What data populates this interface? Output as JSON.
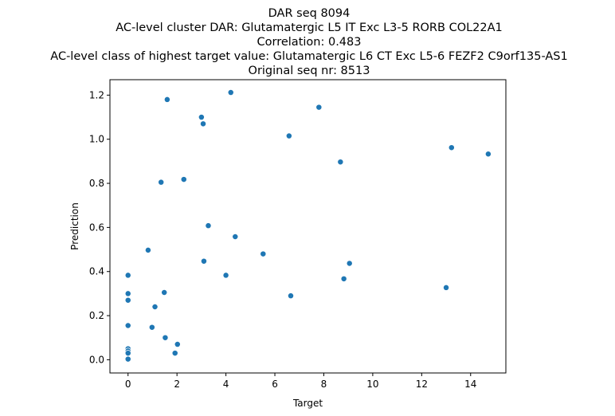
{
  "chart_data": {
    "type": "scatter",
    "title": [
      "DAR seq 8094",
      "AC-level cluster DAR: Glutamatergic L5 IT Exc L3-5 RORB COL22A1",
      "Correlation: 0.483",
      "AC-level class of highest target value: Glutamatergic L6 CT Exc L5-6 FEZF2 C9orf135-AS1",
      "Original seq nr: 8513"
    ],
    "xlabel": "Target",
    "ylabel": "Prediction",
    "xlim": [
      -0.74,
      15.44
    ],
    "ylim": [
      -0.06,
      1.27
    ],
    "xticks": [
      0,
      2,
      4,
      6,
      8,
      10,
      12,
      14
    ],
    "yticks": [
      0.0,
      0.2,
      0.4,
      0.6,
      0.8,
      1.0,
      1.2
    ],
    "xtick_labels": [
      "0",
      "2",
      "4",
      "6",
      "8",
      "10",
      "12",
      "14"
    ],
    "ytick_labels": [
      "0.0",
      "0.2",
      "0.4",
      "0.6",
      "0.8",
      "1.0",
      "1.2"
    ],
    "grid": false,
    "legend": "none",
    "marker_color": "#1f77b4",
    "x": [
      0.0,
      0.0,
      0.0,
      0.0,
      0.0,
      0.0,
      0.0,
      0.0,
      0.82,
      0.98,
      1.1,
      1.35,
      1.48,
      1.52,
      1.6,
      1.92,
      2.02,
      2.28,
      3.0,
      3.07,
      3.1,
      3.28,
      4.0,
      4.2,
      4.38,
      5.52,
      6.58,
      6.65,
      7.8,
      8.68,
      8.82,
      9.05,
      13.0,
      13.22,
      14.72
    ],
    "y": [
      0.383,
      0.3,
      0.27,
      0.155,
      0.05,
      0.04,
      0.03,
      0.003,
      0.497,
      0.147,
      0.24,
      0.805,
      0.305,
      0.1,
      1.18,
      0.03,
      0.07,
      0.818,
      1.1,
      1.07,
      0.447,
      0.608,
      0.383,
      1.212,
      0.558,
      0.48,
      1.015,
      0.29,
      1.145,
      0.897,
      0.367,
      0.437,
      0.327,
      0.962,
      0.933
    ]
  }
}
